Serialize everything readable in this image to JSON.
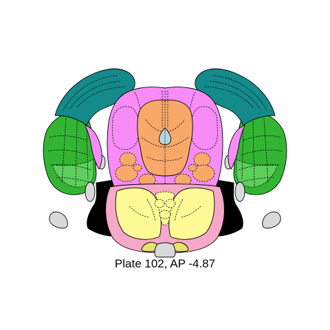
{
  "caption": "Plate 102, AP -4.87",
  "colors": {
    "cortex_teal": "#148a8a",
    "cortex_green": "#33b533",
    "cortex_light_green": "#5ccf5c",
    "midbrain_magenta": "#f78cf7",
    "tegmentum_orange": "#f8a96a",
    "pons_yellow": "#fdfa96",
    "pons_pink": "#f7a8c8",
    "ventricle_blue": "#b7d7e0",
    "black_tract": "#000000",
    "gray_structure": "#d9d9d9",
    "small_yellow": "#e6e36a"
  }
}
